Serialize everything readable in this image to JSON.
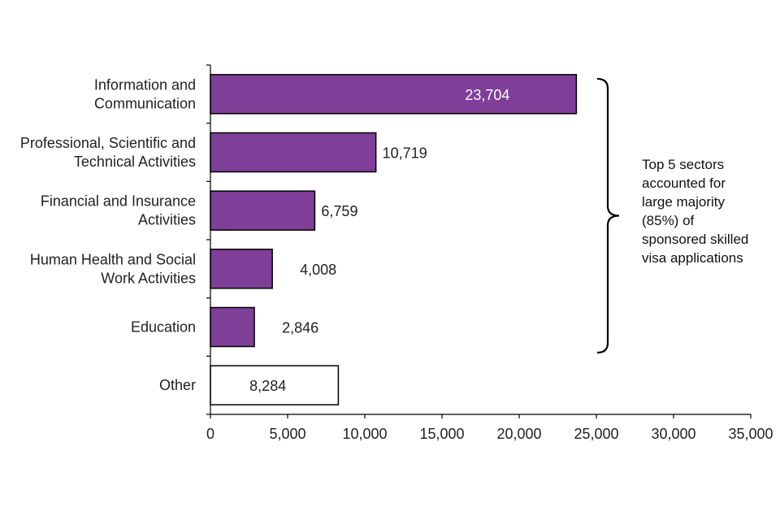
{
  "chart_data": {
    "type": "bar",
    "orientation": "horizontal",
    "categories": [
      [
        "Information and",
        "Communication"
      ],
      [
        "Professional, Scientific and",
        "Technical Activities"
      ],
      [
        "Financial and Insurance",
        "Activities"
      ],
      [
        "Human Health and Social",
        "Work Activities"
      ],
      [
        "Education"
      ],
      [
        "Other"
      ]
    ],
    "values": [
      23704,
      10719,
      6759,
      4008,
      2846,
      8284
    ],
    "value_labels": [
      "23,704",
      "10,719",
      "6,759",
      "4,008",
      "2,846",
      "8,284"
    ],
    "highlighted": [
      true,
      true,
      true,
      true,
      true,
      false
    ],
    "xlim": [
      0,
      35000
    ],
    "xticks": [
      0,
      5000,
      10000,
      15000,
      20000,
      25000,
      30000,
      35000
    ],
    "xtick_labels": [
      "0",
      "5,000",
      "10,000",
      "15,000",
      "20,000",
      "25,000",
      "30,000",
      "35,000"
    ],
    "title": "",
    "xlabel": "",
    "ylabel": "",
    "grid": false,
    "legend": "none",
    "colors": {
      "highlight": "#7f3f98",
      "other": "#ffffff",
      "outline": "#000000"
    },
    "annotation": {
      "text_lines": [
        "Top 5 sectors",
        "accounted for",
        "large majority",
        "(85%) of",
        "sponsored skilled",
        "visa applications"
      ],
      "bracket_span": [
        0,
        4
      ]
    }
  }
}
